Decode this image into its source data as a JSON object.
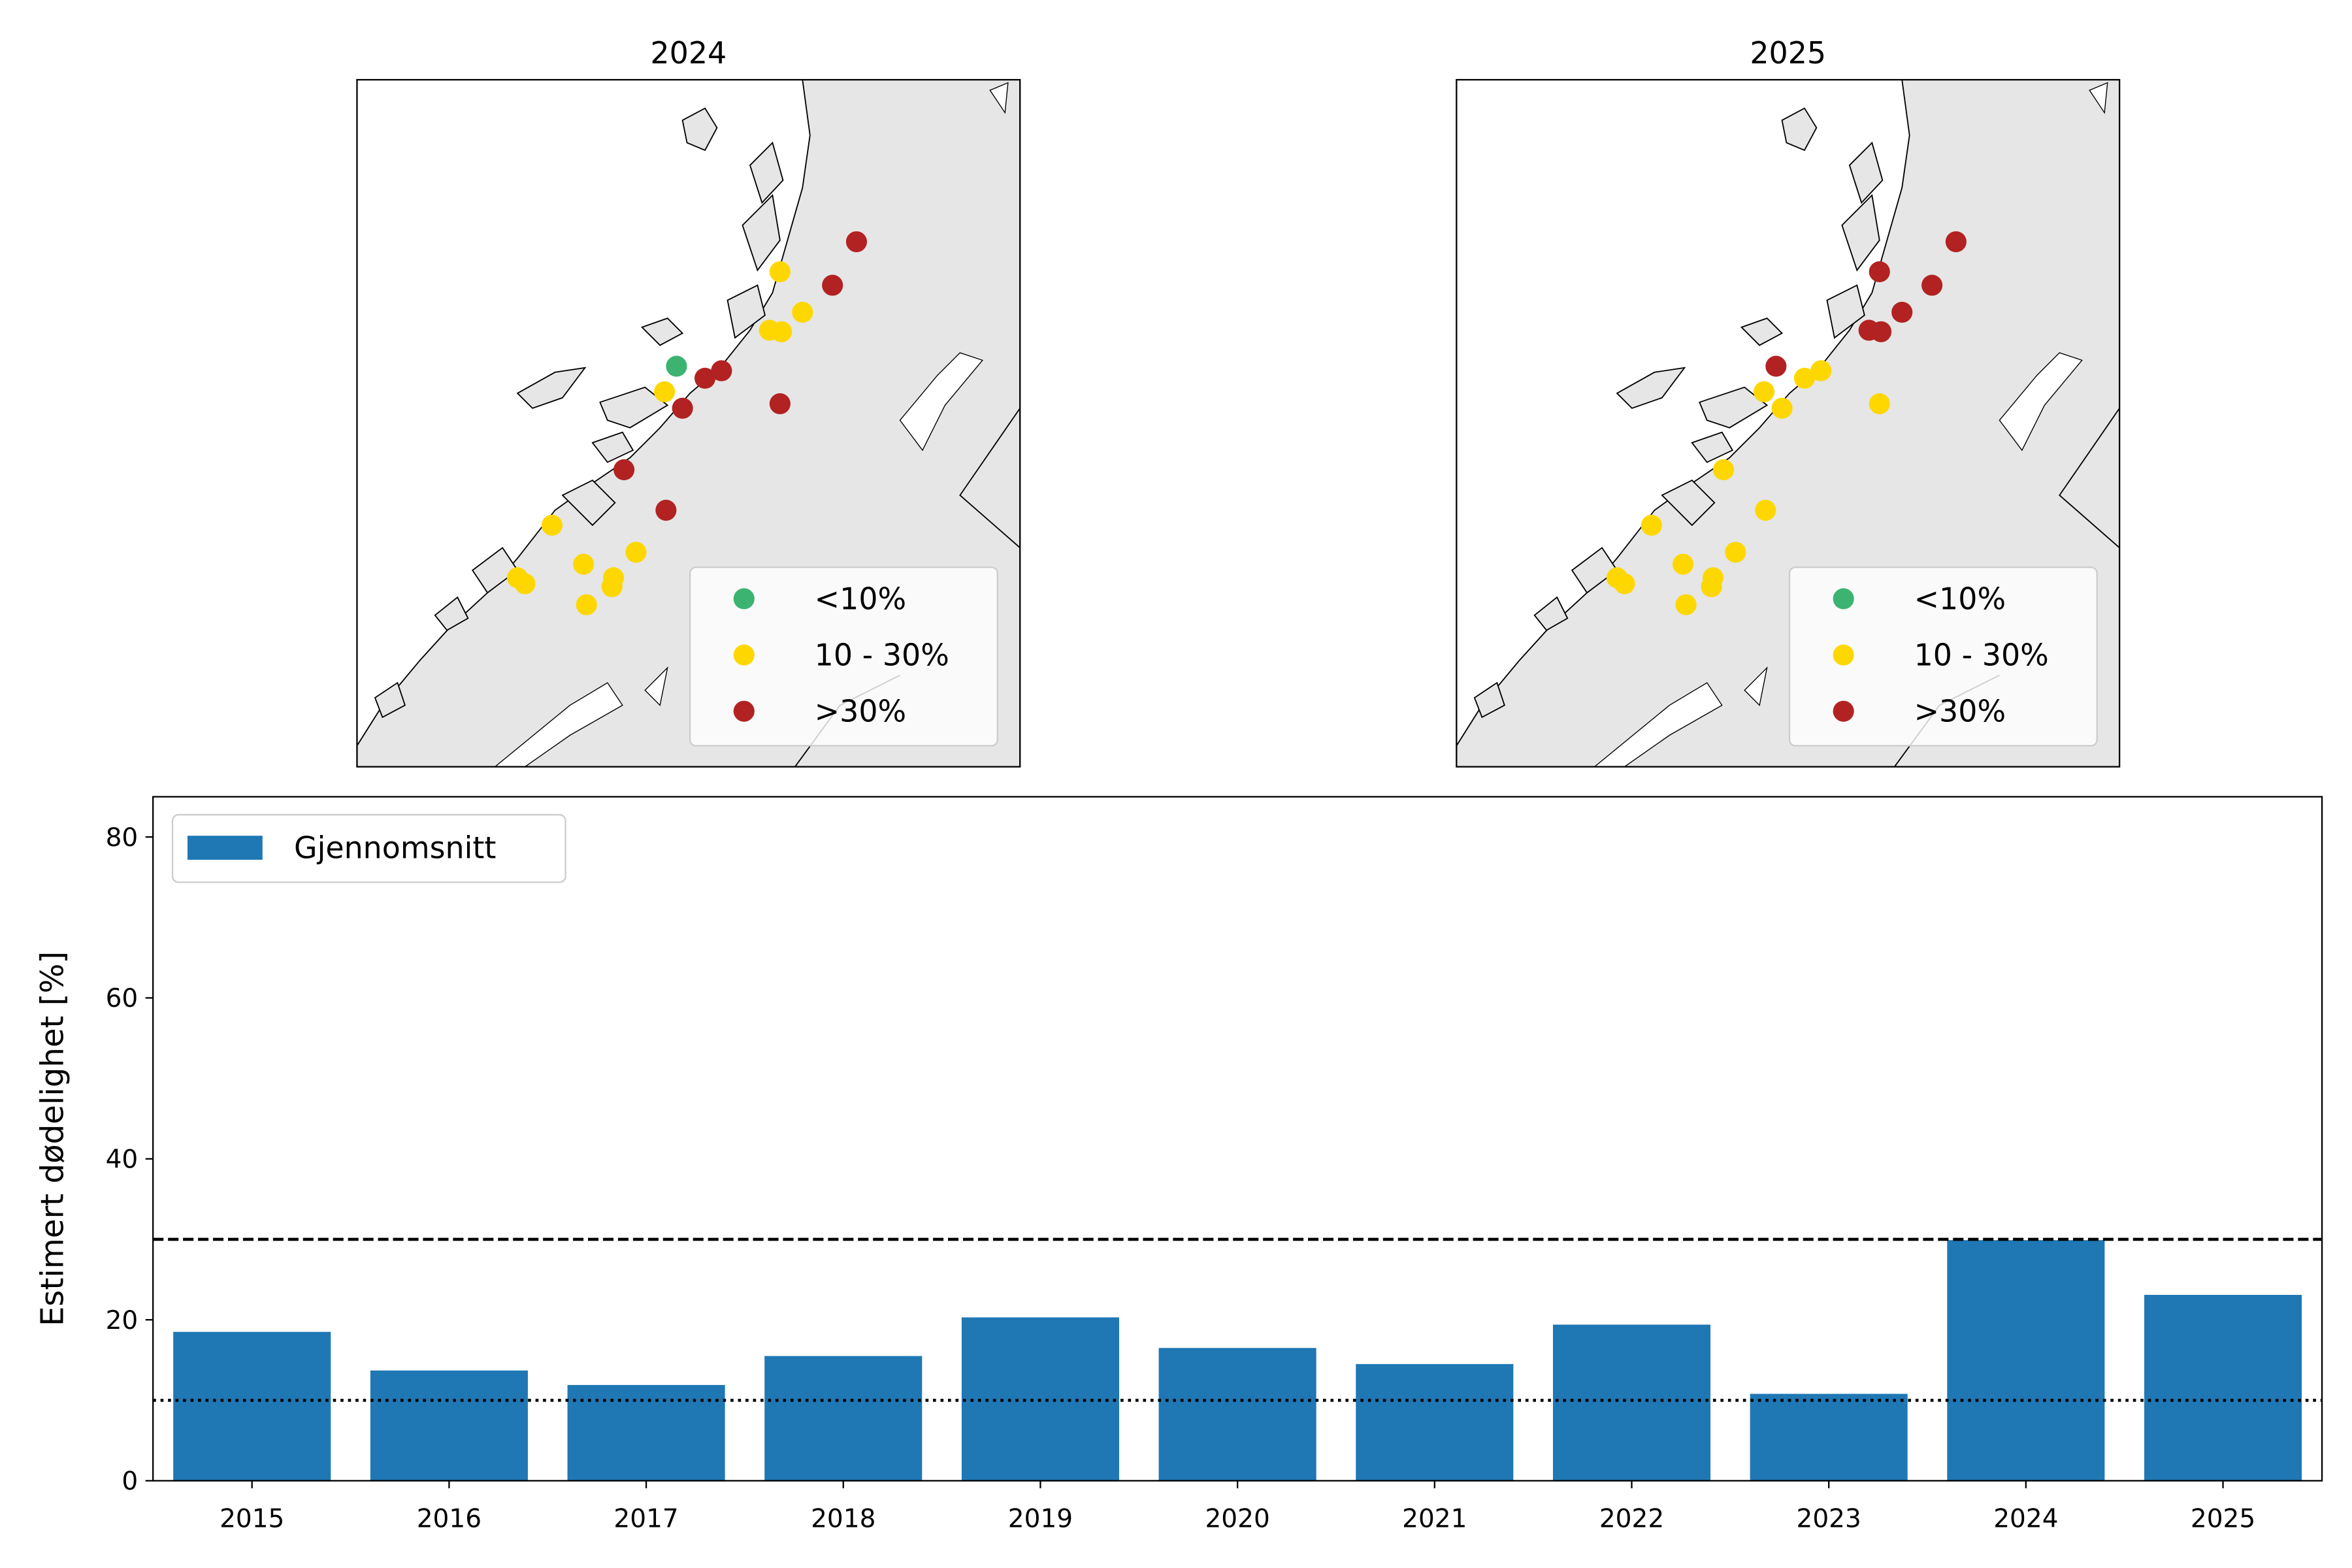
{
  "chart_data": [
    {
      "type": "scatter",
      "subtype": "map",
      "title": "2024",
      "legend": {
        "placement": "lower-right",
        "entries": [
          {
            "label": "<10%",
            "color": "#3cb371"
          },
          {
            "label": "10 - 30%",
            "color": "#ffd700"
          },
          {
            "label": ">30%",
            "color": "#b22222"
          }
        ]
      },
      "site_categories": [
        "red",
        "red",
        "yellow",
        "yellow",
        "yellow",
        "yellow",
        "green",
        "red",
        "red",
        "yellow",
        "red",
        "red",
        "red",
        "red",
        "yellow",
        "yellow",
        "yellow",
        "yellow",
        "yellow",
        "yellow",
        "yellow",
        "yellow"
      ]
    },
    {
      "type": "scatter",
      "subtype": "map",
      "title": "2025",
      "legend": {
        "placement": "lower-right",
        "entries": [
          {
            "label": "<10%",
            "color": "#3cb371"
          },
          {
            "label": "10 - 30%",
            "color": "#ffd700"
          },
          {
            "label": ">30%",
            "color": "#b22222"
          }
        ]
      },
      "site_categories": [
        "red",
        "red",
        "red",
        "red",
        "red",
        "red",
        "red",
        "yellow",
        "yellow",
        "yellow",
        "yellow",
        "yellow",
        "yellow",
        "yellow",
        "yellow",
        "yellow",
        "yellow",
        "yellow",
        "yellow",
        "yellow",
        "yellow",
        "yellow"
      ]
    },
    {
      "type": "bar",
      "categories": [
        "2015",
        "2016",
        "2017",
        "2018",
        "2019",
        "2020",
        "2021",
        "2022",
        "2023",
        "2024",
        "2025"
      ],
      "series": [
        {
          "name": "Gjennomsnitt",
          "values": [
            18.5,
            13.7,
            11.9,
            15.5,
            20.3,
            16.5,
            14.5,
            19.4,
            10.8,
            29.9,
            23.1
          ],
          "color": "#1f77b4"
        }
      ],
      "ylabel": "Estimert dødelighet [%]",
      "xlabel": "",
      "ylim": [
        0,
        85
      ],
      "yticks": [
        "0",
        "20",
        "40",
        "60",
        "80"
      ],
      "reference_lines": [
        {
          "value": 30,
          "style": "dashed",
          "color": "#000000"
        },
        {
          "value": 10,
          "style": "dotted",
          "color": "#000000"
        }
      ],
      "legend_placement": "top-left",
      "grid": false
    }
  ]
}
